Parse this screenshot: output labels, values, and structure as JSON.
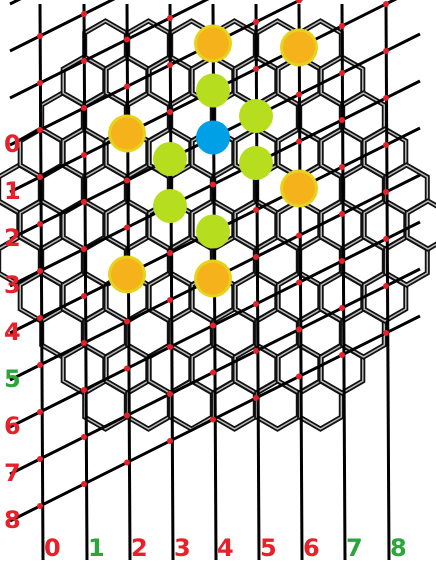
{
  "title": "",
  "colors": {
    "background": "#ffffff",
    "lines": "#000000",
    "hex_outline_outer": "#111111",
    "hex_outline_inner": "#bbbbbb",
    "red_dot": "#e8202a",
    "label_red": "#e8202a",
    "label_green": "#2aa63a",
    "piece_orange": "#f5b21a",
    "piece_orange_ring": "#e7d31b",
    "piece_green": "#b6de1e",
    "piece_blue": "#00a0e6"
  },
  "row_labels": [
    {
      "text": "0",
      "color": "red"
    },
    {
      "text": "1",
      "color": "red"
    },
    {
      "text": "2",
      "color": "red"
    },
    {
      "text": "3",
      "color": "red"
    },
    {
      "text": "4",
      "color": "red"
    },
    {
      "text": "5",
      "color": "green"
    },
    {
      "text": "6",
      "color": "red"
    },
    {
      "text": "7",
      "color": "red"
    },
    {
      "text": "8",
      "color": "red"
    }
  ],
  "column_labels": [
    {
      "text": "0",
      "color": "red"
    },
    {
      "text": "1",
      "color": "green"
    },
    {
      "text": "2",
      "color": "red"
    },
    {
      "text": "3",
      "color": "red"
    },
    {
      "text": "4",
      "color": "red"
    },
    {
      "text": "5",
      "color": "red"
    },
    {
      "text": "6",
      "color": "red"
    },
    {
      "text": "7",
      "color": "green"
    },
    {
      "text": "8",
      "color": "green"
    }
  ],
  "pieces": [
    {
      "type": "orange",
      "col": 4,
      "row": 0
    },
    {
      "type": "orange",
      "col": 2,
      "row": 1
    },
    {
      "type": "green",
      "col": 4,
      "row": 1
    },
    {
      "type": "orange",
      "col": 6,
      "row": 1
    },
    {
      "type": "green",
      "col": 3,
      "row": 2
    },
    {
      "type": "blue",
      "col": 4,
      "row": 2
    },
    {
      "type": "green",
      "col": 5,
      "row": 2
    },
    {
      "type": "green",
      "col": 3,
      "row": 3
    },
    {
      "type": "green",
      "col": 5,
      "row": 3
    },
    {
      "type": "orange",
      "col": 2,
      "row": 4
    },
    {
      "type": "green",
      "col": 4,
      "row": 4
    },
    {
      "type": "orange",
      "col": 6,
      "row": 4
    },
    {
      "type": "orange",
      "col": 4,
      "row": 5
    }
  ]
}
